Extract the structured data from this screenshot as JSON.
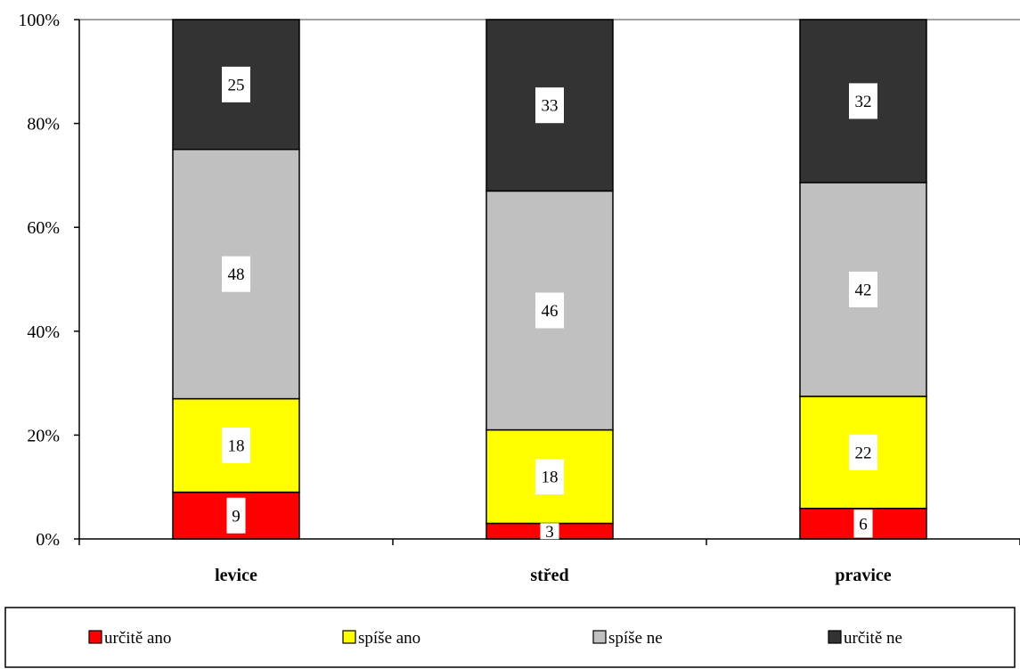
{
  "chart_data": {
    "type": "bar",
    "stacked": true,
    "normalized": true,
    "categories": [
      "levice",
      "střed",
      "pravice"
    ],
    "series": [
      {
        "name": "určitě ano",
        "color": "#ff0000",
        "values": [
          9,
          3,
          6
        ]
      },
      {
        "name": "spíše ano",
        "color": "#ffff00",
        "values": [
          18,
          18,
          22
        ]
      },
      {
        "name": "spíše ne",
        "color": "#c0c0c0",
        "values": [
          48,
          46,
          42
        ]
      },
      {
        "name": "určitě ne",
        "color": "#333333",
        "values": [
          25,
          33,
          32
        ]
      }
    ],
    "yticks": [
      "0%",
      "20%",
      "40%",
      "60%",
      "80%",
      "100%"
    ],
    "ylim": [
      0,
      100
    ],
    "grid": false,
    "legend_position": "bottom"
  }
}
